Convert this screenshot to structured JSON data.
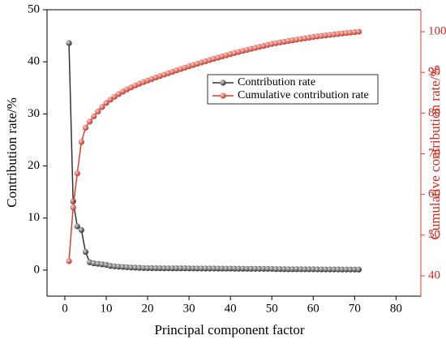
{
  "chart_data": {
    "type": "line",
    "x_label": "Principal component factor",
    "y_label": "Contribution rate/%",
    "y2_label": "Cumulative contribution rate/%",
    "x": [
      1,
      2,
      3,
      4,
      5,
      6,
      7,
      8,
      9,
      10,
      11,
      12,
      13,
      14,
      15,
      16,
      17,
      18,
      19,
      20,
      21,
      22,
      23,
      24,
      25,
      26,
      27,
      28,
      29,
      30,
      31,
      32,
      33,
      34,
      35,
      36,
      37,
      38,
      39,
      40,
      41,
      42,
      43,
      44,
      45,
      46,
      47,
      48,
      49,
      50,
      51,
      52,
      53,
      54,
      55,
      56,
      57,
      58,
      59,
      60,
      61,
      62,
      63,
      64,
      65,
      66,
      67,
      68,
      69,
      70,
      71
    ],
    "xlim": [
      -4.3,
      86
    ],
    "xticks": [
      0,
      10,
      20,
      30,
      40,
      50,
      60,
      70,
      80
    ],
    "ylim": [
      -5,
      50
    ],
    "yticks": [
      0,
      10,
      20,
      30,
      40,
      50
    ],
    "y2lim": [
      35,
      105.4
    ],
    "y2ticks": [
      40,
      50,
      60,
      70,
      80,
      90,
      100
    ],
    "legend": "upper right",
    "series": [
      {
        "name": "Contribution rate",
        "color": "#333333",
        "values": [
          43.6,
          13.2,
          8.4,
          7.7,
          3.5,
          1.5,
          1.3,
          1.2,
          1.1,
          1.0,
          0.8,
          0.72,
          0.65,
          0.6,
          0.55,
          0.5,
          0.47,
          0.43,
          0.4,
          0.38,
          0.38,
          0.37,
          0.36,
          0.35,
          0.35,
          0.34,
          0.34,
          0.34,
          0.34,
          0.33,
          0.32,
          0.31,
          0.31,
          0.3,
          0.3,
          0.3,
          0.29,
          0.29,
          0.29,
          0.29,
          0.27,
          0.26,
          0.26,
          0.25,
          0.25,
          0.25,
          0.24,
          0.24,
          0.24,
          0.24,
          0.19,
          0.18,
          0.18,
          0.17,
          0.17,
          0.17,
          0.16,
          0.16,
          0.16,
          0.16,
          0.14,
          0.13,
          0.13,
          0.12,
          0.12,
          0.12,
          0.11,
          0.11,
          0.11,
          0.11,
          0.1
        ]
      },
      {
        "name": "Cumulative contribution rate",
        "color": "#e03c31",
        "axis": "y2",
        "values": [
          43.6,
          56.8,
          65.2,
          72.9,
          76.4,
          77.9,
          79.2,
          80.4,
          81.5,
          82.5,
          83.3,
          84.02,
          84.67,
          85.27,
          85.82,
          86.32,
          86.79,
          87.22,
          87.62,
          88.0,
          88.38,
          88.75,
          89.11,
          89.46,
          89.81,
          90.15,
          90.49,
          90.83,
          91.17,
          91.5,
          91.82,
          92.13,
          92.44,
          92.74,
          93.04,
          93.34,
          93.63,
          93.92,
          94.21,
          94.5,
          94.77,
          95.03,
          95.29,
          95.54,
          95.79,
          96.04,
          96.28,
          96.52,
          96.76,
          97.0,
          97.19,
          97.37,
          97.55,
          97.72,
          97.89,
          98.06,
          98.22,
          98.38,
          98.54,
          98.7,
          98.84,
          98.97,
          99.1,
          99.22,
          99.34,
          99.46,
          99.57,
          99.68,
          99.79,
          99.9,
          100.0
        ]
      }
    ]
  }
}
